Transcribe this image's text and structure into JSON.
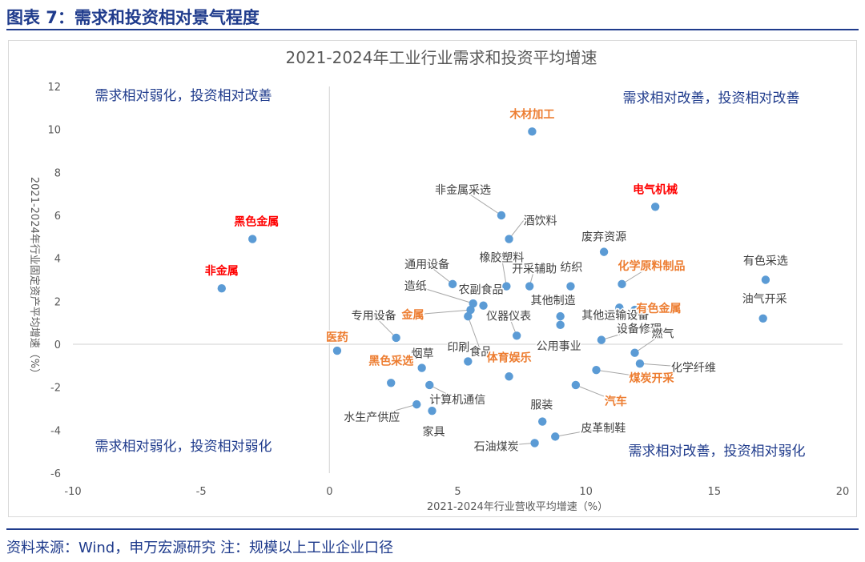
{
  "figure_title": "图表 7：需求和投资相对景气程度",
  "source_note": "资料来源：Wind，申万宏源研究 注：规模以上工业企业口径",
  "colors": {
    "dot": "#5b9bd5",
    "label": "#404040",
    "highlight_red": "#ff0000",
    "highlight_orange": "#ed7d31",
    "quadrant_text": "#1f3b8c",
    "brand_blue": "#1f3b8c"
  },
  "chart_data": {
    "type": "scatter",
    "title": "2021-2024年工业行业需求和投资平均增速",
    "xlabel": "2021-2024年行业营收平均增速（%）",
    "ylabel": "2021-2024年行业固定资产平均增速（%）",
    "xlim": [
      -10,
      20
    ],
    "ylim": [
      -6,
      12
    ],
    "xticks": [
      "-10",
      "-5",
      "0",
      "5",
      "10",
      "15",
      "20"
    ],
    "yticks": [
      "-6",
      "-4",
      "-2",
      "0",
      "2",
      "4",
      "6",
      "8",
      "10",
      "12"
    ],
    "grid": false,
    "quadrant_labels": {
      "top_left": "需求相对弱化，投资相对改善",
      "top_right": "需求相对改善，投资相对改善",
      "bottom_left": "需求相对弱化，投资相对弱化",
      "bottom_right": "需求相对改善，投资相对弱化"
    },
    "points": [
      {
        "name": "木材加工",
        "x": 7.9,
        "y": 9.9,
        "style": "orange"
      },
      {
        "name": "电气机械",
        "x": 12.7,
        "y": 6.4,
        "style": "red"
      },
      {
        "name": "黑色金属",
        "x": -3.0,
        "y": 4.9,
        "style": "red"
      },
      {
        "name": "非金属",
        "x": -4.2,
        "y": 2.6,
        "style": "red"
      },
      {
        "name": "非金属采选",
        "x": 6.7,
        "y": 6.0,
        "style": "normal"
      },
      {
        "name": "酒饮料",
        "x": 7.0,
        "y": 4.9,
        "style": "normal"
      },
      {
        "name": "废弃资源",
        "x": 10.7,
        "y": 4.3,
        "style": "normal"
      },
      {
        "name": "有色采选",
        "x": 17.0,
        "y": 3.0,
        "style": "normal"
      },
      {
        "name": "化学原料制品",
        "x": 11.4,
        "y": 2.8,
        "style": "orange"
      },
      {
        "name": "通用设备",
        "x": 4.8,
        "y": 2.8,
        "style": "normal"
      },
      {
        "name": "橡胶塑料",
        "x": 6.9,
        "y": 2.7,
        "style": "normal"
      },
      {
        "name": "开采辅助",
        "x": 7.8,
        "y": 2.7,
        "style": "normal"
      },
      {
        "name": "纺织",
        "x": 9.4,
        "y": 2.7,
        "style": "normal"
      },
      {
        "name": "其他运输设备",
        "x": 11.3,
        "y": 1.7,
        "style": "normal"
      },
      {
        "name": "有色金属",
        "x": 11.9,
        "y": 1.6,
        "style": "orange"
      },
      {
        "name": "油气开采",
        "x": 16.9,
        "y": 1.2,
        "style": "normal"
      },
      {
        "name": "造纸",
        "x": 5.6,
        "y": 1.9,
        "style": "normal"
      },
      {
        "name": "农副食品",
        "x": 6.0,
        "y": 1.8,
        "style": "normal"
      },
      {
        "name": "金属",
        "x": 5.5,
        "y": 1.6,
        "style": "orange"
      },
      {
        "name": "食品",
        "x": 5.4,
        "y": 1.3,
        "style": "normal"
      },
      {
        "name": "仪器仪表",
        "x": 7.3,
        "y": 0.4,
        "style": "normal"
      },
      {
        "name": "其他制造",
        "x": 9.0,
        "y": 1.3,
        "style": "normal"
      },
      {
        "name": "公用事业",
        "x": 9.0,
        "y": 0.9,
        "style": "normal"
      },
      {
        "name": "设备修理",
        "x": 10.6,
        "y": 0.2,
        "style": "normal"
      },
      {
        "name": "专用设备",
        "x": 2.6,
        "y": 0.3,
        "style": "normal"
      },
      {
        "name": "医药",
        "x": 0.3,
        "y": -0.3,
        "style": "orange"
      },
      {
        "name": "燃气",
        "x": 11.9,
        "y": -0.4,
        "style": "normal"
      },
      {
        "name": "化学纤维",
        "x": 12.1,
        "y": -0.9,
        "style": "normal"
      },
      {
        "name": "印刷",
        "x": 5.4,
        "y": -0.8,
        "style": "normal"
      },
      {
        "name": "烟草",
        "x": 3.6,
        "y": -1.1,
        "style": "normal"
      },
      {
        "name": "体育娱乐",
        "x": 7.0,
        "y": -1.5,
        "style": "orange"
      },
      {
        "name": "黑色采选",
        "x": 2.4,
        "y": -1.8,
        "style": "orange"
      },
      {
        "name": "煤炭开采",
        "x": 10.4,
        "y": -1.2,
        "style": "orange"
      },
      {
        "name": "汽车",
        "x": 9.6,
        "y": -1.9,
        "style": "orange"
      },
      {
        "name": "计算机通信",
        "x": 3.9,
        "y": -1.9,
        "style": "normal"
      },
      {
        "name": "水生产供应",
        "x": 3.4,
        "y": -2.8,
        "style": "normal"
      },
      {
        "name": "家具",
        "x": 4.0,
        "y": -3.1,
        "style": "normal"
      },
      {
        "name": "服装",
        "x": 8.3,
        "y": -3.6,
        "style": "normal"
      },
      {
        "name": "皮革制鞋",
        "x": 8.8,
        "y": -4.3,
        "style": "normal"
      },
      {
        "name": "石油煤炭",
        "x": 8.0,
        "y": -4.6,
        "style": "normal"
      }
    ]
  }
}
